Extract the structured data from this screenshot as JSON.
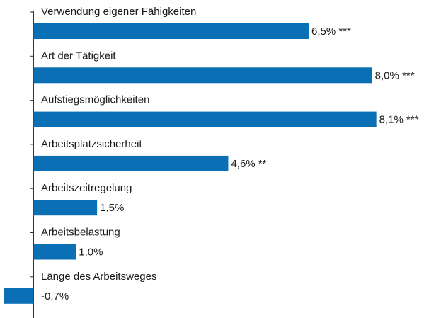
{
  "chart_data": {
    "type": "hbar",
    "categories": [
      "Verwendung eigener Fähigkeiten",
      "Art der Tätigkeit",
      "Aufstiegsmöglichkeiten",
      "Arbeitsplatzsicherheit",
      "Arbeitszeitregelung",
      "Arbeitsbelastung",
      "Länge des Arbeitsweges"
    ],
    "values": [
      6.5,
      8.0,
      8.1,
      4.6,
      1.5,
      1.0,
      -0.7
    ],
    "value_labels": [
      "6,5% ***",
      "8,0% ***",
      "8,1% ***",
      "4,6% **",
      "1,5%",
      "1,0%",
      "-0,7%"
    ],
    "color": "#0a6fb5"
  }
}
